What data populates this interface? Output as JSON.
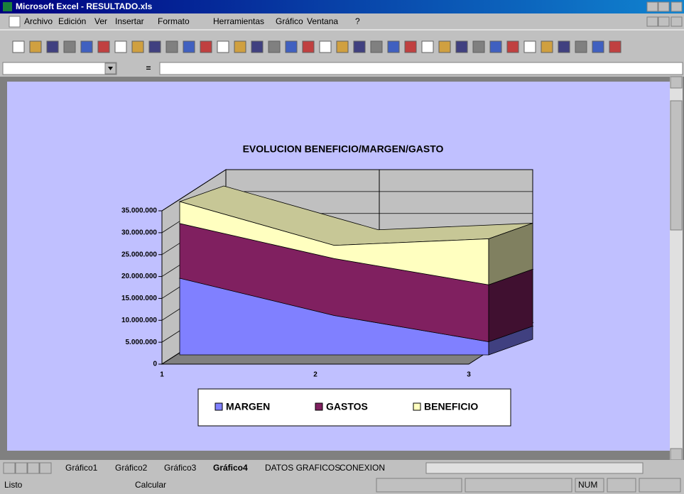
{
  "window": {
    "title": "Microsoft Excel - RESULTADO.xls"
  },
  "menu": [
    "Archivo",
    "Edición",
    "Ver",
    "Insertar",
    "Formato",
    "Herramientas",
    "Gráfico",
    "Ventana",
    "?"
  ],
  "formula_bar": {
    "equals": "="
  },
  "chart_data": {
    "type": "area3d",
    "stacked": true,
    "title": "EVOLUCION BENEFICIO/MARGEN/GASTO",
    "categories": [
      "1",
      "2",
      "3"
    ],
    "series": [
      {
        "name": "MARGEN",
        "color": "#8080ff",
        "values": [
          17500000,
          9000000,
          3000000
        ]
      },
      {
        "name": "GASTOS",
        "color": "#802060",
        "values": [
          12500000,
          13000000,
          13000000
        ]
      },
      {
        "name": "BENEFICIO",
        "color": "#ffffc0",
        "values": [
          5000000,
          3000000,
          10500000
        ]
      }
    ],
    "ylim": [
      0,
      35000000
    ],
    "yticks": [
      0,
      {
        "value": 5000000,
        "label": "5.000.000"
      },
      {
        "value": 10000000,
        "label": "10.000.000"
      },
      {
        "value": 15000000,
        "label": "15.000.000"
      },
      {
        "value": 20000000,
        "label": "20.000.000"
      },
      {
        "value": 25000000,
        "label": "25.000.000"
      },
      {
        "value": 30000000,
        "label": "30.000.000"
      },
      {
        "value": 35000000,
        "label": "35.000.000"
      }
    ],
    "grid": true,
    "legend": "bottom"
  },
  "sheet_tabs": [
    "Gráfico1",
    "Gráfico2",
    "Gráfico3",
    "Gráfico4",
    "DATOS GRAFICOS",
    "CONEXION"
  ],
  "active_tab": 3,
  "status": {
    "left": "Listo",
    "middle": "Calcular",
    "num": "NUM"
  }
}
